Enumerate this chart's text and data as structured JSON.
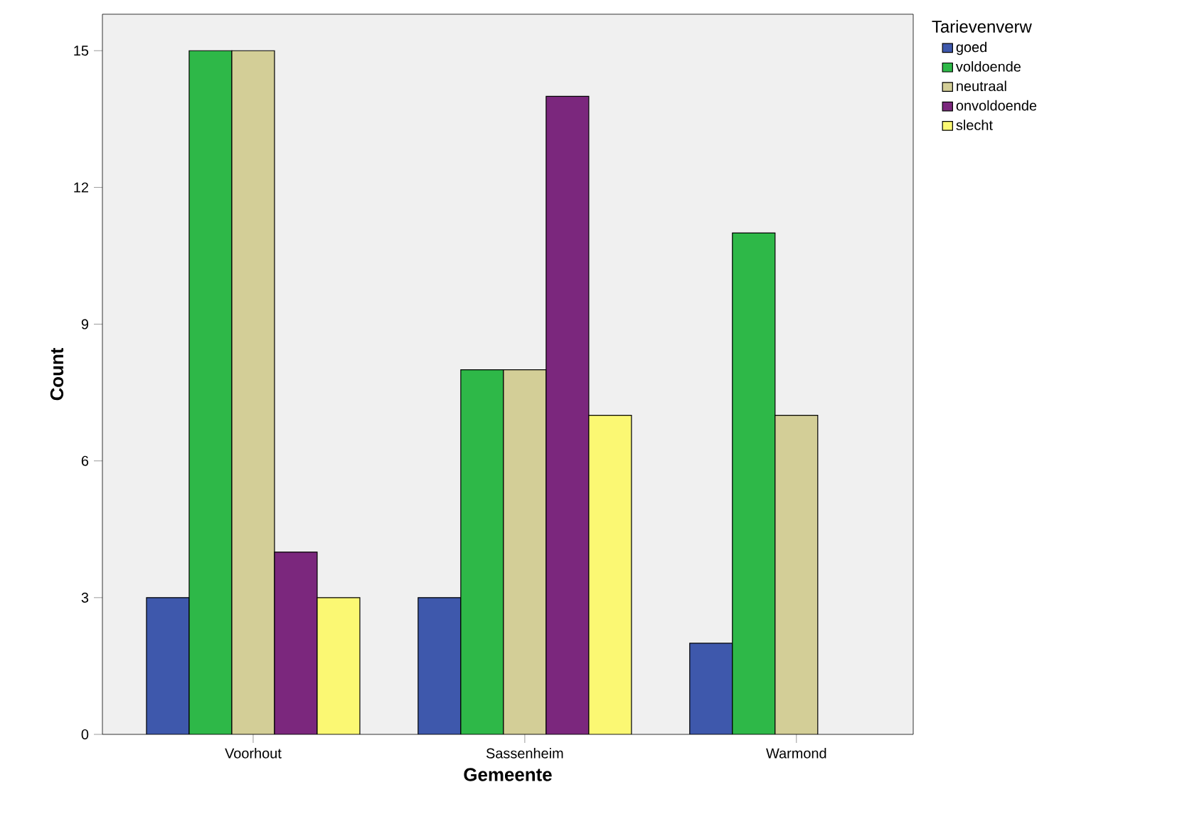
{
  "chart_data": {
    "type": "bar",
    "xlabel": "Gemeente",
    "ylabel": "Count",
    "legend_title": "Tarievenverw",
    "categories": [
      "Voorhout",
      "Sassenheim",
      "Warmond"
    ],
    "series": [
      {
        "name": "goed",
        "color": "#3e58ac",
        "values": [
          3,
          3,
          2
        ]
      },
      {
        "name": "voldoende",
        "color": "#2eb848",
        "values": [
          15,
          8,
          11
        ]
      },
      {
        "name": "neutraal",
        "color": "#d3ce97",
        "values": [
          15,
          8,
          7
        ]
      },
      {
        "name": "onvoldoende",
        "color": "#7b277d",
        "values": [
          4,
          14,
          null
        ]
      },
      {
        "name": "slecht",
        "color": "#fbf873",
        "values": [
          3,
          7,
          null
        ]
      }
    ],
    "ylim": [
      0,
      15.8
    ],
    "yticks": [
      0,
      3,
      6,
      9,
      12,
      15
    ],
    "grid": false,
    "legend": "top right"
  }
}
